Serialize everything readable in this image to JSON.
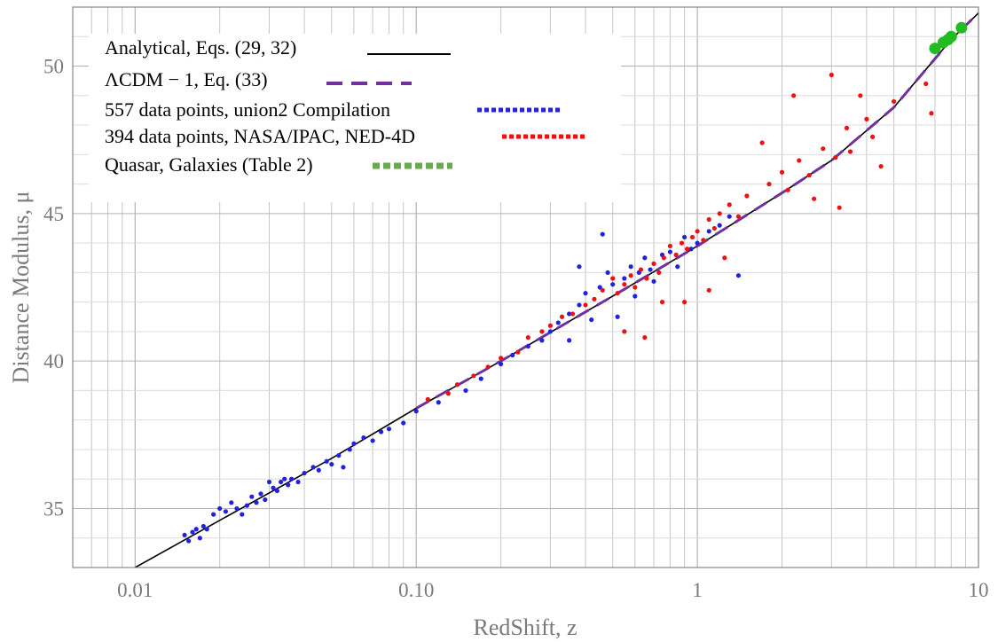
{
  "chart_data": {
    "type": "scatter",
    "xlabel": "RedShift, z",
    "ylabel": "Distance Modulus, μ",
    "x_scale": "log",
    "xlim": [
      0.006,
      10
    ],
    "ylim": [
      33,
      52
    ],
    "grid": true,
    "legend_position": "top-left",
    "x_ticks": [
      {
        "value": 0.01,
        "label": "0.01"
      },
      {
        "value": 0.1,
        "label": "0.10"
      },
      {
        "value": 1,
        "label": "1"
      },
      {
        "value": 10,
        "label": "10"
      }
    ],
    "y_ticks": [
      {
        "value": 35,
        "label": "35"
      },
      {
        "value": 40,
        "label": "40"
      },
      {
        "value": 45,
        "label": "45"
      },
      {
        "value": 50,
        "label": "50"
      }
    ],
    "series": [
      {
        "name": "Analytical, Eqs. (29, 32)",
        "kind": "line",
        "color": "#000000",
        "points": [
          [
            0.01,
            33.0
          ],
          [
            0.02,
            34.6
          ],
          [
            0.05,
            36.7
          ],
          [
            0.1,
            38.4
          ],
          [
            0.2,
            40.0
          ],
          [
            0.5,
            42.2
          ],
          [
            1,
            43.9
          ],
          [
            2,
            45.7
          ],
          [
            3,
            46.8
          ],
          [
            5,
            48.6
          ],
          [
            8,
            50.9
          ],
          [
            10,
            51.8
          ]
        ]
      },
      {
        "name": "ΛCDM − 1, Eq. (33)",
        "kind": "dashed-line",
        "color": "#7030a0",
        "points": [
          [
            0.1,
            38.4
          ],
          [
            0.2,
            40.0
          ],
          [
            0.5,
            42.2
          ],
          [
            1,
            43.9
          ],
          [
            2,
            45.7
          ],
          [
            3,
            46.8
          ],
          [
            5,
            48.6
          ],
          [
            8,
            50.9
          ],
          [
            10,
            51.8
          ]
        ]
      },
      {
        "name": "557 data points, union2 Compilation",
        "kind": "points",
        "color": "#2222dd",
        "points": [
          [
            0.015,
            34.1
          ],
          [
            0.0155,
            33.9
          ],
          [
            0.016,
            34.2
          ],
          [
            0.0165,
            34.3
          ],
          [
            0.017,
            34.0
          ],
          [
            0.0175,
            34.4
          ],
          [
            0.018,
            34.3
          ],
          [
            0.019,
            34.8
          ],
          [
            0.02,
            35.0
          ],
          [
            0.021,
            34.9
          ],
          [
            0.022,
            35.2
          ],
          [
            0.023,
            35.0
          ],
          [
            0.024,
            34.8
          ],
          [
            0.025,
            35.1
          ],
          [
            0.026,
            35.4
          ],
          [
            0.027,
            35.2
          ],
          [
            0.028,
            35.5
          ],
          [
            0.029,
            35.3
          ],
          [
            0.03,
            35.9
          ],
          [
            0.031,
            35.7
          ],
          [
            0.032,
            35.6
          ],
          [
            0.033,
            35.9
          ],
          [
            0.034,
            36.0
          ],
          [
            0.035,
            35.8
          ],
          [
            0.036,
            36.0
          ],
          [
            0.038,
            35.9
          ],
          [
            0.04,
            36.2
          ],
          [
            0.043,
            36.4
          ],
          [
            0.045,
            36.3
          ],
          [
            0.048,
            36.6
          ],
          [
            0.05,
            36.5
          ],
          [
            0.053,
            36.8
          ],
          [
            0.055,
            36.4
          ],
          [
            0.058,
            37.0
          ],
          [
            0.06,
            37.2
          ],
          [
            0.065,
            37.4
          ],
          [
            0.07,
            37.3
          ],
          [
            0.075,
            37.6
          ],
          [
            0.08,
            37.7
          ],
          [
            0.09,
            37.9
          ],
          [
            0.1,
            38.3
          ],
          [
            0.12,
            38.6
          ],
          [
            0.15,
            39.0
          ],
          [
            0.17,
            39.4
          ],
          [
            0.2,
            39.9
          ],
          [
            0.22,
            40.2
          ],
          [
            0.25,
            40.5
          ],
          [
            0.28,
            40.7
          ],
          [
            0.3,
            41.0
          ],
          [
            0.32,
            41.3
          ],
          [
            0.35,
            41.6
          ],
          [
            0.38,
            41.9
          ],
          [
            0.4,
            42.3
          ],
          [
            0.42,
            41.4
          ],
          [
            0.45,
            42.5
          ],
          [
            0.48,
            43.0
          ],
          [
            0.5,
            42.6
          ],
          [
            0.52,
            41.5
          ],
          [
            0.55,
            42.8
          ],
          [
            0.58,
            43.2
          ],
          [
            0.6,
            42.2
          ],
          [
            0.62,
            43.0
          ],
          [
            0.65,
            43.5
          ],
          [
            0.68,
            43.1
          ],
          [
            0.7,
            42.7
          ],
          [
            0.75,
            43.6
          ],
          [
            0.8,
            43.7
          ],
          [
            0.85,
            43.2
          ],
          [
            0.9,
            44.2
          ],
          [
            0.95,
            43.8
          ],
          [
            1.0,
            44.0
          ],
          [
            1.1,
            44.4
          ],
          [
            1.2,
            44.6
          ],
          [
            1.4,
            42.9
          ],
          [
            1.3,
            44.9
          ],
          [
            0.46,
            44.3
          ],
          [
            0.38,
            43.2
          ],
          [
            0.35,
            40.7
          ]
        ]
      },
      {
        "name": "394 data points, NASA/IPAC, NED-4D",
        "kind": "points",
        "color": "#ee1111",
        "points": [
          [
            0.11,
            38.7
          ],
          [
            0.13,
            38.9
          ],
          [
            0.14,
            39.2
          ],
          [
            0.16,
            39.5
          ],
          [
            0.18,
            39.8
          ],
          [
            0.2,
            40.1
          ],
          [
            0.23,
            40.3
          ],
          [
            0.25,
            40.8
          ],
          [
            0.28,
            41.0
          ],
          [
            0.3,
            41.2
          ],
          [
            0.33,
            41.5
          ],
          [
            0.36,
            41.6
          ],
          [
            0.4,
            41.9
          ],
          [
            0.43,
            42.1
          ],
          [
            0.46,
            42.4
          ],
          [
            0.5,
            42.8
          ],
          [
            0.52,
            42.3
          ],
          [
            0.55,
            42.6
          ],
          [
            0.58,
            42.9
          ],
          [
            0.6,
            42.5
          ],
          [
            0.63,
            43.1
          ],
          [
            0.66,
            42.8
          ],
          [
            0.7,
            43.3
          ],
          [
            0.73,
            43.0
          ],
          [
            0.76,
            43.5
          ],
          [
            0.8,
            43.9
          ],
          [
            0.84,
            43.6
          ],
          [
            0.88,
            44.0
          ],
          [
            0.92,
            43.8
          ],
          [
            0.96,
            44.2
          ],
          [
            1.0,
            44.4
          ],
          [
            1.05,
            44.1
          ],
          [
            1.1,
            44.8
          ],
          [
            1.15,
            44.5
          ],
          [
            1.2,
            45.0
          ],
          [
            1.3,
            45.3
          ],
          [
            1.4,
            44.9
          ],
          [
            1.5,
            45.6
          ],
          [
            1.7,
            47.4
          ],
          [
            1.8,
            46.0
          ],
          [
            2.0,
            46.4
          ],
          [
            2.1,
            45.8
          ],
          [
            2.2,
            49.0
          ],
          [
            2.3,
            46.8
          ],
          [
            2.5,
            46.3
          ],
          [
            2.6,
            45.5
          ],
          [
            2.8,
            47.2
          ],
          [
            3.0,
            49.7
          ],
          [
            3.1,
            46.9
          ],
          [
            3.2,
            45.2
          ],
          [
            3.4,
            47.9
          ],
          [
            3.5,
            47.1
          ],
          [
            3.8,
            49.0
          ],
          [
            4.0,
            48.2
          ],
          [
            4.2,
            47.6
          ],
          [
            4.5,
            46.6
          ],
          [
            5.0,
            48.8
          ],
          [
            6.5,
            49.4
          ],
          [
            6.8,
            48.4
          ],
          [
            0.65,
            40.8
          ],
          [
            0.9,
            42.0
          ],
          [
            1.1,
            42.4
          ],
          [
            0.55,
            41.0
          ],
          [
            0.75,
            42.0
          ],
          [
            1.25,
            43.5
          ]
        ]
      },
      {
        "name": "Quasar, Galaxies (Table 2)",
        "kind": "points",
        "color": "#22bb22",
        "points": [
          [
            7.0,
            50.6
          ],
          [
            7.5,
            50.8
          ],
          [
            7.8,
            50.9
          ],
          [
            8.0,
            51.0
          ],
          [
            8.7,
            51.3
          ]
        ]
      }
    ]
  }
}
